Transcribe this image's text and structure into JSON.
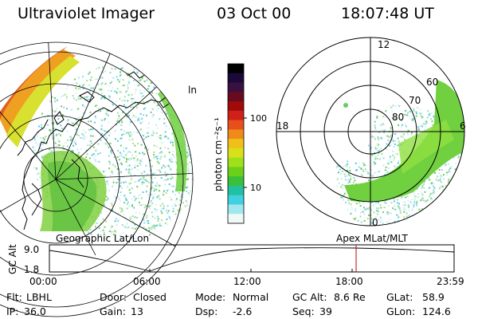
{
  "header": {
    "instrument": "Ultraviolet Imager",
    "date": "03 Oct 00",
    "time": "18:07:48 UT"
  },
  "colorbar": {
    "label": "photon cm⁻²s⁻¹",
    "ticks": [
      "100",
      "10"
    ],
    "colors": [
      "#000000",
      "#1a0a3a",
      "#3a1040",
      "#6a0a20",
      "#a00a0a",
      "#d0201a",
      "#e6501a",
      "#f08a1a",
      "#f0c01a",
      "#d8e01a",
      "#a0e01a",
      "#6ad01a",
      "#3ac03a",
      "#20c0a0",
      "#40d0e0",
      "#a0e8f0",
      "#f0f8f8"
    ]
  },
  "geographic": {
    "label": "Geographic Lat/Lon",
    "map_label": "ln"
  },
  "polar": {
    "label": "Apex MLat/MLT",
    "mlt_labels": [
      "12",
      "18",
      "6",
      "0"
    ],
    "lat_labels": [
      "60",
      "70",
      "80"
    ]
  },
  "altitude_plot": {
    "ylabel": "GC Alt",
    "yticks": [
      "9.0",
      "1.8"
    ],
    "xticks": [
      "00:00",
      "06:00",
      "12:00",
      "18:00",
      "23:59"
    ],
    "marker_time": "18:07",
    "marker_color": "#c00000"
  },
  "info": {
    "row1": [
      {
        "key": "Flt:",
        "val": "LBHL"
      },
      {
        "key": "Door:",
        "val": "Closed"
      },
      {
        "key": "Mode:",
        "val": "Normal"
      },
      {
        "key": "GC Alt:",
        "val": "8.6 Re"
      },
      {
        "key": "GLat:",
        "val": "58.9"
      }
    ],
    "row2": [
      {
        "key": "IP:",
        "val": "36.0"
      },
      {
        "key": "Gain:",
        "val": "13"
      },
      {
        "key": "Dsp:",
        "val": "-2.6"
      },
      {
        "key": "Seq:",
        "val": "39"
      },
      {
        "key": "GLon:",
        "val": "124.6"
      }
    ]
  }
}
